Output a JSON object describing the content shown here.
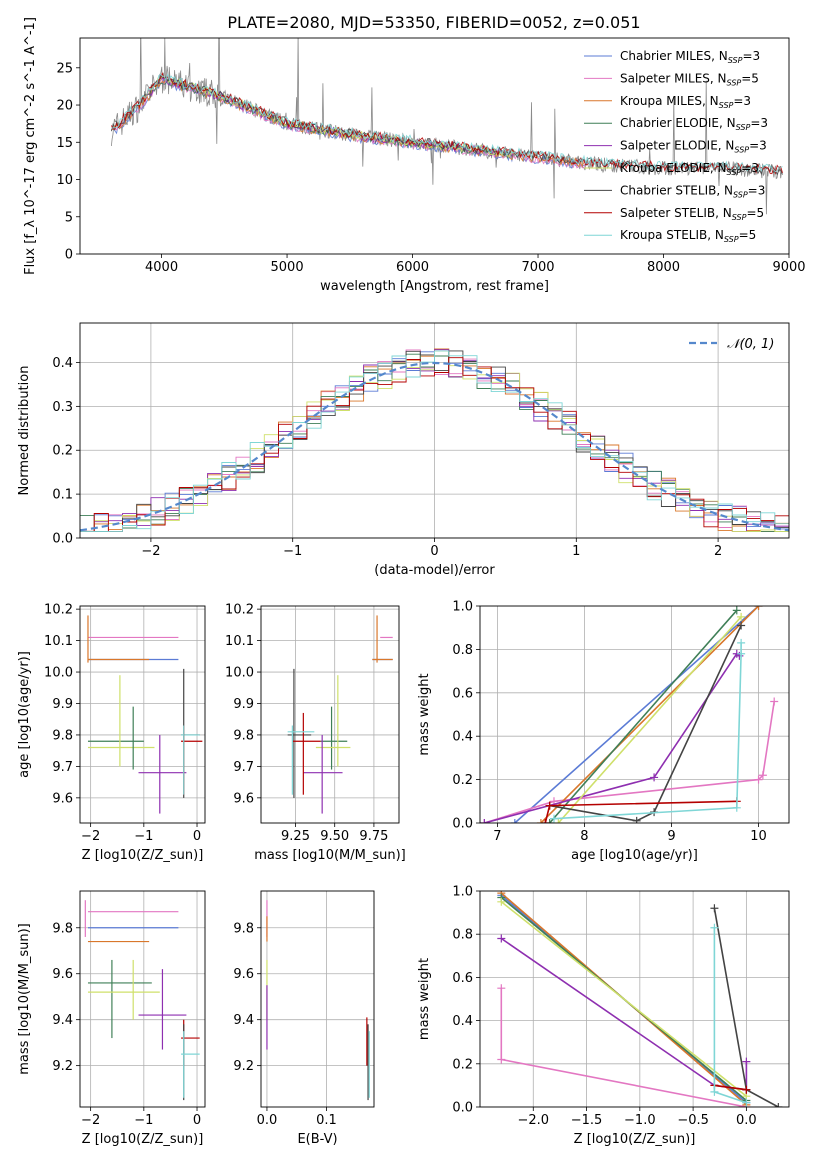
{
  "title": "PLATE=2080, MJD=53350, FIBERID=0052, z=0.051",
  "colors": {
    "Chabrier MILES": "#5b7bd5",
    "Salpeter MILES": "#e377c2",
    "Kroupa MILES": "#d9772b",
    "Chabrier ELODIE": "#3f7f57",
    "Salpeter ELODIE": "#8e2fb0",
    "Kroupa ELODIE": "#cfe06a",
    "Chabrier STELIB": "#444444",
    "Salpeter STELIB": "#b40000",
    "Kroupa STELIB": "#7fd6d6"
  },
  "legend_labels": [
    "Chabrier MILES, N_SSP=3",
    "Salpeter MILES, N_SSP=5",
    "Kroupa MILES, N_SSP=3",
    "Chabrier ELODIE, N_SSP=3",
    "Salpeter ELODIE, N_SSP=3",
    "Kroupa ELODIE, N_SSP=3",
    "Chabrier STELIB, N_SSP=3",
    "Salpeter STELIB, N_SSP=5",
    "Kroupa STELIB, N_SSP=5"
  ],
  "chart_data": [
    {
      "type": "line",
      "panel": "spectrum",
      "xlabel": "wavelength [Angstrom, rest frame]",
      "ylabel": "Flux [f_λ 10^-17 erg cm^-2 s^-1 A^-1]",
      "xlim": [
        3350,
        9000
      ],
      "ylim": [
        0,
        29
      ],
      "xticks": [
        4000,
        5000,
        6000,
        7000,
        8000,
        9000
      ],
      "yticks": [
        0,
        5,
        10,
        15,
        20,
        25
      ],
      "continuum": {
        "x": [
          3600,
          3800,
          4000,
          4200,
          4500,
          5000,
          5500,
          6000,
          6500,
          7000,
          7500,
          8000,
          8500,
          8950
        ],
        "y": [
          16.5,
          19.5,
          23.5,
          22.5,
          21.0,
          17.5,
          16.0,
          15.0,
          14.0,
          13.0,
          12.0,
          11.5,
          11.5,
          11.0
        ]
      },
      "model_coverage": [
        {
          "model": "MILES",
          "x_range": [
            3600,
            7400
          ]
        },
        {
          "model": "ELODIE",
          "x_range": [
            3900,
            6800
          ]
        },
        {
          "model": "STELIB",
          "x_range": [
            3600,
            8950
          ]
        }
      ]
    },
    {
      "type": "bar",
      "panel": "residual histogram",
      "xlabel": "(data-model)/error",
      "ylabel": "Normed distribution",
      "xlim": [
        -2.5,
        2.5
      ],
      "ylim": [
        0,
        0.49
      ],
      "xticks": [
        -2,
        -1,
        0,
        1,
        2
      ],
      "yticks": [
        0.0,
        0.1,
        0.2,
        0.3,
        0.4
      ],
      "series_legend": "N(0, 1)",
      "gaussian": {
        "mu": 0,
        "sigma": 1
      }
    },
    {
      "type": "scatter",
      "panel": "age vs Z",
      "xlabel": "Z [log10(Z/Z_sun)]",
      "ylabel": "age [log10(age/yr)]",
      "xlim": [
        -2.2,
        0.15
      ],
      "ylim": [
        9.52,
        10.21
      ],
      "xticks": [
        -2,
        -1,
        0
      ],
      "yticks": [
        9.6,
        9.7,
        9.8,
        9.9,
        10.0,
        10.1,
        10.2
      ],
      "points": [
        {
          "model": "Chabrier MILES",
          "x": [
            -2.05,
            -0.35
          ],
          "y": [
            10.04,
            10.04
          ]
        },
        {
          "model": "Salpeter MILES",
          "x": [
            -2.05,
            -0.35
          ],
          "y": [
            10.11,
            10.11
          ]
        },
        {
          "model": "Kroupa MILES",
          "x": [
            -2.05,
            -0.9
          ],
          "y": [
            10.04,
            10.04
          ]
        },
        {
          "model": "Chabrier ELODIE",
          "x": [
            -2.05,
            -1.0
          ],
          "y": [
            9.78,
            9.78
          ]
        },
        {
          "model": "Salpeter ELODIE",
          "x": [
            -1.1,
            -0.2
          ],
          "y": [
            9.68,
            9.68
          ]
        },
        {
          "model": "Kroupa ELODIE",
          "x": [
            -2.05,
            -0.8
          ],
          "y": [
            9.76,
            9.76
          ]
        },
        {
          "model": "Chabrier STELIB",
          "x": [
            -0.3,
            0.05
          ],
          "y": [
            9.8,
            9.8
          ]
        },
        {
          "model": "Salpeter STELIB",
          "x": [
            -0.3,
            0.1
          ],
          "y": [
            9.78,
            9.78
          ]
        },
        {
          "model": "Kroupa STELIB",
          "x": [
            -0.3,
            0.05
          ],
          "y": [
            9.8,
            9.8
          ]
        }
      ]
    },
    {
      "type": "scatter",
      "panel": "age vs mass",
      "xlabel": "mass [log10(M/M_sun)]",
      "ylabel": "",
      "xlim": [
        9.03,
        9.91
      ],
      "ylim": [
        9.52,
        10.21
      ],
      "xticks": [
        9.25,
        9.5,
        9.75
      ],
      "yticks": [
        9.6,
        9.7,
        9.8,
        9.9,
        10.0,
        10.1,
        10.2
      ],
      "points": [
        {
          "model": "MILES",
          "x": 9.8,
          "y": 10.04
        },
        {
          "model": "ELODIE",
          "x": 9.5,
          "y": 9.76
        },
        {
          "model": "STELIB",
          "x": 9.25,
          "y": 9.8
        }
      ]
    },
    {
      "type": "line",
      "panel": "mass weight vs age",
      "xlabel": "age [log10(age/yr)]",
      "ylabel": "mass weight",
      "xlim": [
        6.8,
        10.35
      ],
      "ylim": [
        0,
        1.0
      ],
      "xticks": [
        7,
        8,
        9,
        10
      ],
      "yticks": [
        0.0,
        0.2,
        0.4,
        0.6,
        0.8,
        1.0
      ],
      "series": [
        {
          "name": "Chabrier MILES",
          "x": [
            7.2,
            10.0
          ],
          "y": [
            0.0,
            1.0
          ]
        },
        {
          "name": "Salpeter MILES",
          "x": [
            6.85,
            7.65,
            10.0,
            10.05,
            10.18
          ],
          "y": [
            0.0,
            0.1,
            0.2,
            0.22,
            0.56
          ]
        },
        {
          "name": "Kroupa MILES",
          "x": [
            7.5,
            10.0
          ],
          "y": [
            0.0,
            1.0
          ]
        },
        {
          "name": "Chabrier ELODIE",
          "x": [
            7.6,
            9.75
          ],
          "y": [
            0.0,
            0.98
          ]
        },
        {
          "name": "Salpeter ELODIE",
          "x": [
            6.85,
            8.8,
            9.75,
            9.78
          ],
          "y": [
            0.0,
            0.21,
            0.78,
            0.77
          ]
        },
        {
          "name": "Kroupa ELODIE",
          "x": [
            7.7,
            9.8
          ],
          "y": [
            0.0,
            0.95
          ]
        },
        {
          "name": "Chabrier STELIB",
          "x": [
            7.6,
            8.6,
            8.8,
            9.8
          ],
          "y": [
            0.08,
            0.01,
            0.05,
            0.91
          ]
        },
        {
          "name": "Salpeter STELIB",
          "x": [
            7.55,
            7.6,
            9.75
          ],
          "y": [
            0.0,
            0.08,
            0.1
          ]
        },
        {
          "name": "Kroupa STELIB",
          "x": [
            7.65,
            9.75,
            9.8,
            9.8
          ],
          "y": [
            0.02,
            0.07,
            0.78,
            0.83
          ]
        }
      ]
    },
    {
      "type": "scatter",
      "panel": "mass vs Z",
      "xlabel": "Z [log10(Z/Z_sun)]",
      "ylabel": "mass [log10(M/M_sun)]",
      "xlim": [
        -2.2,
        0.15
      ],
      "ylim": [
        9.02,
        9.96
      ],
      "xticks": [
        -2,
        -1,
        0
      ],
      "yticks": [
        9.2,
        9.4,
        9.6,
        9.8
      ],
      "points": [
        {
          "model": "MILES",
          "x": -1.2,
          "y": 9.8
        },
        {
          "model": "ELODIE",
          "x": -1.2,
          "y": 9.55
        },
        {
          "model": "STELIB",
          "x": -0.25,
          "y": 9.28
        }
      ]
    },
    {
      "type": "scatter",
      "panel": "mass vs E(B-V)",
      "xlabel": "E(B-V)",
      "ylabel": "",
      "xlim": [
        -0.01,
        0.18
      ],
      "ylim": [
        9.02,
        9.96
      ],
      "xticks": [
        0.0,
        0.1
      ],
      "yticks": [
        9.2,
        9.4,
        9.6,
        9.8
      ],
      "points": [
        {
          "model": "MILES",
          "x": 0.0,
          "y": 9.8
        },
        {
          "model": "ELODIE",
          "x": 0.0,
          "y": 9.5
        },
        {
          "model": "STELIB",
          "x": 0.17,
          "y": 9.25
        }
      ]
    },
    {
      "type": "line",
      "panel": "mass weight vs Z",
      "xlabel": "Z [log10(Z/Z_sun)]",
      "ylabel": "mass weight",
      "xlim": [
        -2.5,
        0.4
      ],
      "ylim": [
        0,
        1.0
      ],
      "xticks": [
        -2.0,
        -1.5,
        -1.0,
        -0.5,
        0.0
      ],
      "yticks": [
        0.0,
        0.2,
        0.4,
        0.6,
        0.8,
        1.0
      ],
      "series": [
        {
          "name": "Chabrier MILES",
          "x": [
            -2.3,
            0.0
          ],
          "y": [
            0.98,
            0.02
          ]
        },
        {
          "name": "Salpeter MILES",
          "x": [
            -2.3,
            -2.3,
            0.0
          ],
          "y": [
            0.55,
            0.22,
            0.0
          ]
        },
        {
          "name": "Kroupa MILES",
          "x": [
            -2.3,
            0.0
          ],
          "y": [
            0.99,
            0.01
          ]
        },
        {
          "name": "Chabrier ELODIE",
          "x": [
            -2.3,
            0.0
          ],
          "y": [
            0.97,
            0.03
          ]
        },
        {
          "name": "Salpeter ELODIE",
          "x": [
            -2.3,
            -0.3,
            0.0,
            0.0
          ],
          "y": [
            0.78,
            0.1,
            0.08,
            0.21
          ]
        },
        {
          "name": "Kroupa ELODIE",
          "x": [
            -2.3,
            0.0
          ],
          "y": [
            0.95,
            0.05
          ]
        },
        {
          "name": "Chabrier STELIB",
          "x": [
            -0.3,
            0.0,
            0.3
          ],
          "y": [
            0.92,
            0.08,
            0.0
          ]
        },
        {
          "name": "Salpeter STELIB",
          "x": [
            -0.3,
            0.0
          ],
          "y": [
            0.1,
            0.08
          ]
        },
        {
          "name": "Kroupa STELIB",
          "x": [
            -0.3,
            -0.3,
            0.0
          ],
          "y": [
            0.83,
            0.07,
            0.02
          ]
        }
      ]
    }
  ]
}
